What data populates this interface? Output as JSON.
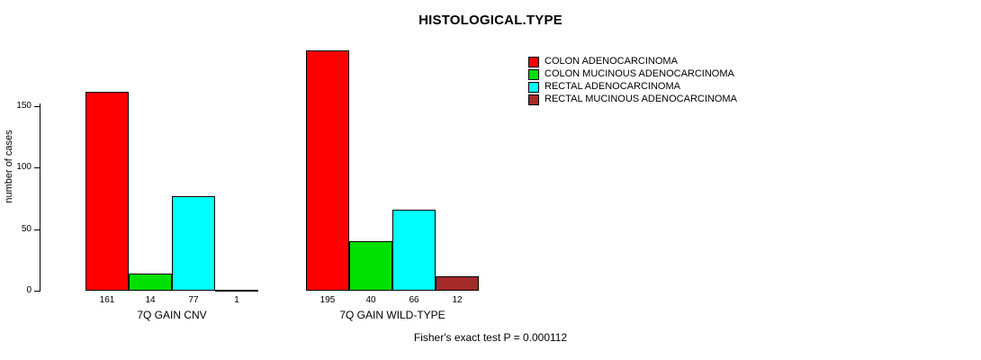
{
  "chart_data": {
    "type": "bar",
    "title": "HISTOLOGICAL.TYPE",
    "ylabel": "number of cases",
    "xlabel": "",
    "yticks": [
      0,
      50,
      100,
      150
    ],
    "ylim": [
      0,
      200
    ],
    "grid": false,
    "legend_position": "right",
    "categories": [
      "7Q GAIN CNV",
      "7Q GAIN WILD-TYPE"
    ],
    "series": [
      {
        "name": "COLON ADENOCARCINOMA",
        "color": "#FF0000",
        "values": [
          161,
          195
        ]
      },
      {
        "name": "COLON MUCINOUS ADENOCARCINOMA",
        "color": "#00E000",
        "values": [
          14,
          40
        ]
      },
      {
        "name": "RECTAL ADENOCARCINOMA",
        "color": "#00FFFF",
        "values": [
          77,
          66
        ]
      },
      {
        "name": "RECTAL MUCINOUS ADENOCARCINOMA",
        "color": "#A52A2A",
        "values": [
          1,
          12
        ]
      }
    ],
    "bar_value_labels": {
      "7Q GAIN CNV": [
        161,
        14,
        77,
        1
      ],
      "7Q GAIN WILD-TYPE": [
        195,
        40,
        66,
        12
      ]
    },
    "footer": "Fisher's exact test P = 0.000112"
  }
}
